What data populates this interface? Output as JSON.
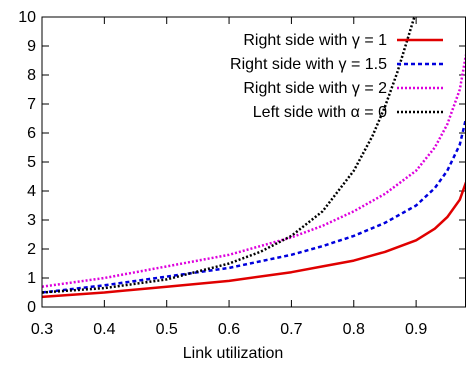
{
  "chart_data": {
    "type": "line",
    "title": "",
    "xlabel": "Link utilization",
    "ylabel": "",
    "xlim": [
      0.3,
      0.98
    ],
    "ylim": [
      0,
      10
    ],
    "grid": false,
    "legend_position": "top-right",
    "x_ticks": [
      "0.3",
      "0.4",
      "0.5",
      "0.6",
      "0.7",
      "0.8",
      "0.9"
    ],
    "y_ticks": [
      "0",
      "1",
      "2",
      "3",
      "4",
      "5",
      "6",
      "7",
      "8",
      "9",
      "10"
    ],
    "series": [
      {
        "name": "Right side with γ = 1",
        "color": "#e00000",
        "dash": "solid",
        "x": [
          0.3,
          0.4,
          0.5,
          0.6,
          0.7,
          0.75,
          0.8,
          0.85,
          0.9,
          0.93,
          0.95,
          0.97,
          0.98
        ],
        "y": [
          0.35,
          0.5,
          0.7,
          0.9,
          1.2,
          1.4,
          1.6,
          1.9,
          2.3,
          2.7,
          3.1,
          3.7,
          4.3
        ]
      },
      {
        "name": "Right side with γ = 1.5",
        "color": "#0000dd",
        "dash": "dashed",
        "x": [
          0.3,
          0.4,
          0.5,
          0.6,
          0.7,
          0.75,
          0.8,
          0.85,
          0.9,
          0.93,
          0.95,
          0.97,
          0.98
        ],
        "y": [
          0.5,
          0.75,
          1.05,
          1.35,
          1.8,
          2.1,
          2.45,
          2.9,
          3.5,
          4.1,
          4.7,
          5.6,
          6.5
        ]
      },
      {
        "name": "Right side with γ = 2",
        "color": "#dd00dd",
        "dash": "dotted",
        "x": [
          0.3,
          0.4,
          0.5,
          0.6,
          0.7,
          0.75,
          0.8,
          0.85,
          0.9,
          0.93,
          0.95,
          0.97,
          0.98
        ],
        "y": [
          0.7,
          1.0,
          1.4,
          1.8,
          2.4,
          2.8,
          3.3,
          3.9,
          4.7,
          5.5,
          6.3,
          7.5,
          8.7
        ]
      },
      {
        "name": "Left side with α = 0",
        "color": "#000000",
        "dash": "dotted",
        "x": [
          0.3,
          0.4,
          0.5,
          0.6,
          0.65,
          0.7,
          0.75,
          0.8,
          0.83,
          0.85,
          0.87,
          0.89,
          0.9,
          0.905
        ],
        "y": [
          0.5,
          0.65,
          0.95,
          1.5,
          1.9,
          2.45,
          3.3,
          4.7,
          5.9,
          6.9,
          8.1,
          9.5,
          10.2,
          10.6
        ]
      }
    ]
  }
}
